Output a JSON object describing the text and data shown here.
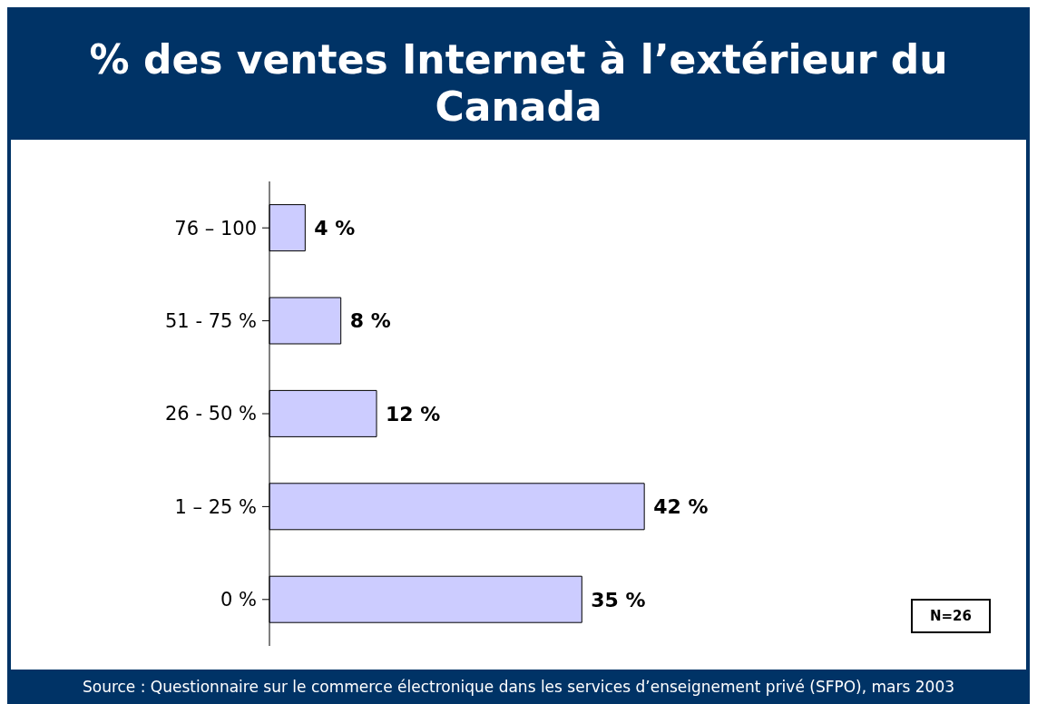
{
  "chart_data": {
    "type": "bar",
    "orientation": "horizontal",
    "title": "% des ventes Internet à l’extérieur du Canada",
    "categories": [
      "76 – 100",
      "51 - 75 %",
      "26 - 50 %",
      "1 – 25 %",
      "0 %"
    ],
    "values": [
      4,
      8,
      12,
      42,
      35
    ],
    "color": "#ccccff",
    "value_labels": [
      "4 %",
      "8 %",
      "12 %",
      "42 %",
      "35 %"
    ],
    "annotations": [
      "N=26",
      "Source : Questionnaire sur le commerce électronique dans les services d’enseignement privé (SFPO), mars 2003"
    ]
  }
}
